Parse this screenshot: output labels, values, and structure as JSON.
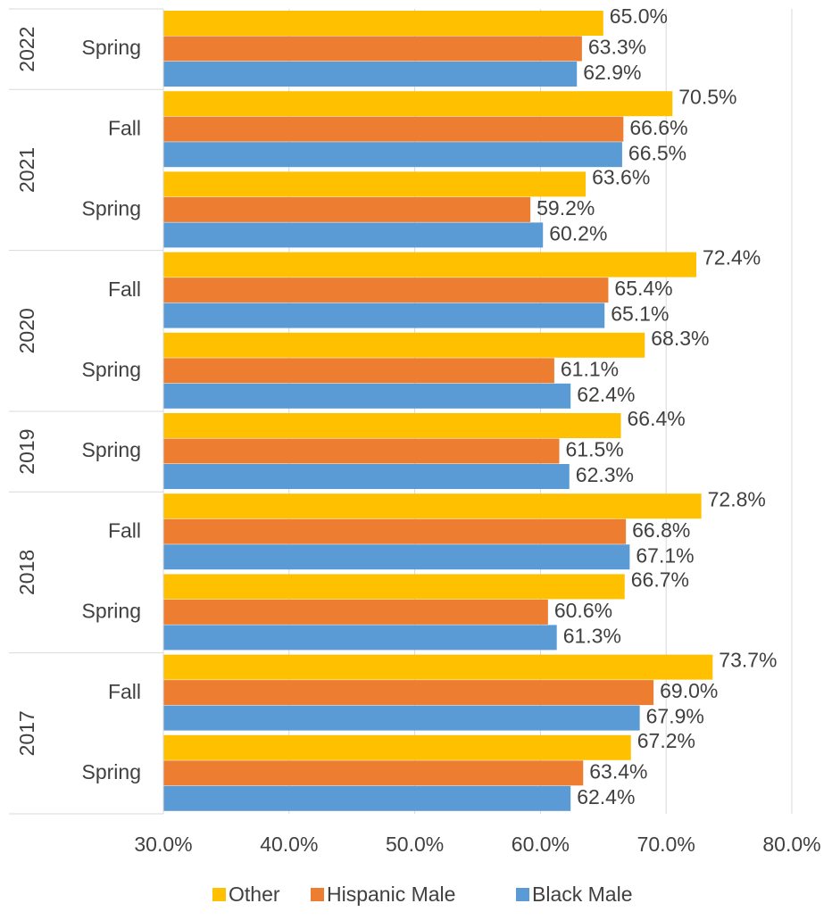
{
  "chart_data": {
    "type": "bar",
    "orientation": "horizontal",
    "groups": [
      {
        "label": "2022",
        "categories": [
          "Spring"
        ]
      },
      {
        "label": "2021",
        "categories": [
          "Fall",
          "Spring"
        ]
      },
      {
        "label": "2020",
        "categories": [
          "Fall",
          "Spring"
        ]
      },
      {
        "label": "2019",
        "categories": [
          "Spring"
        ]
      },
      {
        "label": "2018",
        "categories": [
          "Fall",
          "Spring"
        ]
      },
      {
        "label": "2017",
        "categories": [
          "Fall",
          "Spring"
        ]
      }
    ],
    "series": [
      {
        "name": "Other",
        "color": "#ffc000",
        "values": [
          65.0,
          70.5,
          63.6,
          72.4,
          68.3,
          66.4,
          72.8,
          66.7,
          73.7,
          67.2
        ],
        "value_labels": [
          "65.0%",
          "70.5%",
          "63.6%",
          "72.4%",
          "68.3%",
          "66.4%",
          "72.8%",
          "66.7%",
          "73.7%",
          "67.2%"
        ]
      },
      {
        "name": "Hispanic Male",
        "color": "#ed7d31",
        "values": [
          63.3,
          66.6,
          59.2,
          65.4,
          61.1,
          61.5,
          66.8,
          60.6,
          69.0,
          63.4
        ],
        "value_labels": [
          "63.3%",
          "66.6%",
          "59.2%",
          "65.4%",
          "61.1%",
          "61.5%",
          "66.8%",
          "60.6%",
          "69.0%",
          "63.4%"
        ]
      },
      {
        "name": "Black Male",
        "color": "#5b9bd5",
        "values": [
          62.9,
          66.5,
          60.2,
          65.1,
          62.4,
          62.3,
          67.1,
          61.3,
          67.9,
          62.4
        ],
        "value_labels": [
          "62.9%",
          "66.5%",
          "60.2%",
          "65.1%",
          "62.4%",
          "62.3%",
          "67.1%",
          "61.3%",
          "67.9%",
          "62.4%"
        ]
      }
    ],
    "xlim": [
      30,
      80
    ],
    "xticks": [
      {
        "value": 30,
        "label": "30.0%"
      },
      {
        "value": 40,
        "label": "40.0%"
      },
      {
        "value": 50,
        "label": "50.0%"
      },
      {
        "value": 60,
        "label": "60.0%"
      },
      {
        "value": 70,
        "label": "70.0%"
      },
      {
        "value": 80,
        "label": "80.0%"
      }
    ],
    "grid": true,
    "legend": "bottom"
  }
}
